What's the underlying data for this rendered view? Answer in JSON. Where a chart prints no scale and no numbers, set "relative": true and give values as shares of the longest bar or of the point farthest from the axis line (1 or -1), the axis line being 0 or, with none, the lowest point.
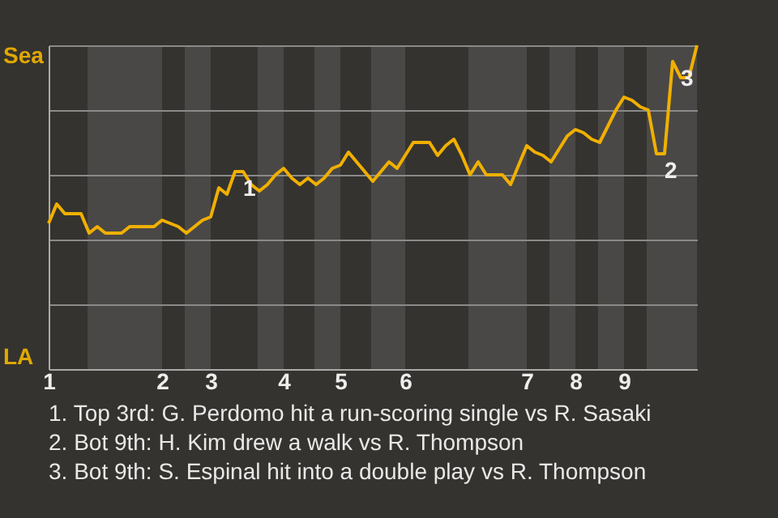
{
  "chart_data": {
    "type": "line",
    "relative": true,
    "categories": [
      "1",
      null,
      null,
      null,
      null,
      null,
      null,
      null,
      null,
      null,
      null,
      null,
      null,
      null,
      "2",
      null,
      null,
      null,
      null,
      null,
      "3",
      null,
      null,
      null,
      null,
      null,
      null,
      null,
      null,
      "4",
      null,
      null,
      null,
      null,
      null,
      null,
      "5",
      null,
      null,
      null,
      null,
      null,
      null,
      null,
      "6",
      null,
      null,
      null,
      null,
      null,
      null,
      null,
      null,
      null,
      null,
      null,
      null,
      null,
      null,
      "7",
      null,
      null,
      null,
      null,
      null,
      "8",
      null,
      null,
      null,
      null,
      null,
      "9",
      null,
      null,
      null,
      null,
      null,
      null,
      null,
      null,
      null
    ],
    "series": [
      {
        "color": "#f0b000",
        "values": [
          0.45,
          0.51,
          0.48,
          0.48,
          0.48,
          0.42,
          0.44,
          0.42,
          0.42,
          0.42,
          0.44,
          0.44,
          0.44,
          0.44,
          0.46,
          0.45,
          0.44,
          0.42,
          0.44,
          0.46,
          0.47,
          0.56,
          0.54,
          0.61,
          0.61,
          0.57,
          0.55,
          0.57,
          0.6,
          0.62,
          0.59,
          0.57,
          0.59,
          0.57,
          0.59,
          0.62,
          0.63,
          0.67,
          0.64,
          0.61,
          0.58,
          0.61,
          0.64,
          0.62,
          0.66,
          0.7,
          0.7,
          0.7,
          0.66,
          0.69,
          0.71,
          0.66,
          0.6,
          0.64,
          0.6,
          0.6,
          0.6,
          0.57,
          0.63,
          0.69,
          0.67,
          0.66,
          0.64,
          0.68,
          0.72,
          0.74,
          0.73,
          0.71,
          0.7,
          0.75,
          0.8,
          0.84,
          0.83,
          0.81,
          0.8,
          0.665,
          0.665,
          0.95,
          0.9,
          0.9,
          1
        ]
      }
    ],
    "grid": "y",
    "annotations": [
      "Sea",
      "LA",
      {
        "text": "1",
        "y": 0.61
      },
      {
        "text": "2",
        "y": 0.665
      },
      {
        "text": "3",
        "y": 0.95
      },
      "1. Top 3rd: G. Perdomo hit a run-scoring single vs R. Sasaki",
      "2. Bot 9th: H. Kim drew a walk vs R. Thompson",
      "3. Bot 9th: S. Espinal hit into a double play vs R. Thompson"
    ]
  }
}
